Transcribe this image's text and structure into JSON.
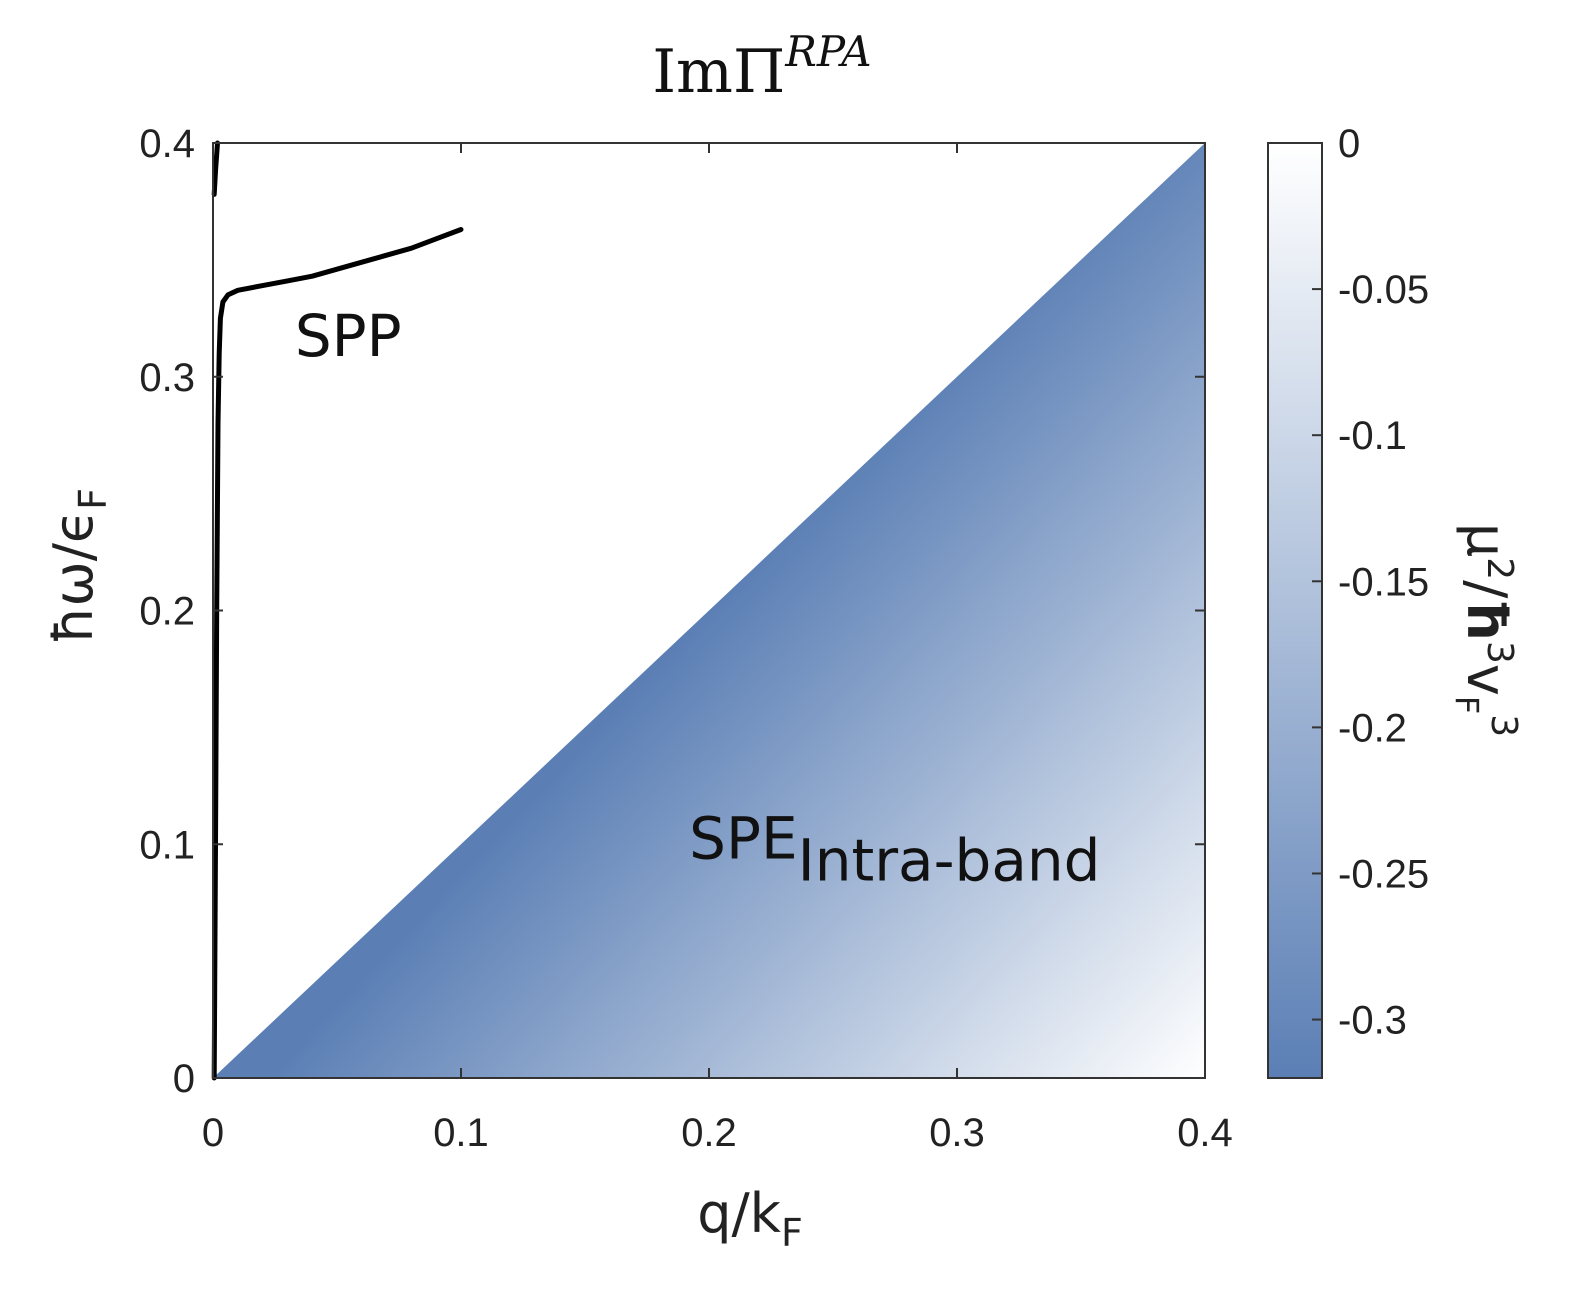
{
  "chart_data": {
    "type": "heatmap",
    "title": {
      "main": "ImΠ",
      "sup": "RPA"
    },
    "xlabel": {
      "main": "q/k",
      "sub": "F"
    },
    "ylabel": {
      "main": "ħω/ϵ",
      "sub": "F"
    },
    "colorbar_label": {
      "mu": "μ",
      "mu_sup": "2",
      "slash": "/",
      "hbar": "ħ",
      "hbar_sup": "3",
      "v": "v",
      "v_sub": "F",
      "v_sup": "3"
    },
    "xlim": [
      0,
      0.4
    ],
    "ylim": [
      0,
      0.4
    ],
    "xticks": [
      0,
      0.1,
      0.2,
      0.3,
      0.4
    ],
    "xtick_labels": [
      "0",
      "0.1",
      "0.2",
      "0.3",
      "0.4"
    ],
    "yticks": [
      0,
      0.1,
      0.2,
      0.3,
      0.4
    ],
    "ytick_labels": [
      "0",
      "0.1",
      "0.2",
      "0.3",
      "0.4"
    ],
    "colorbar": {
      "range": [
        -0.32,
        0
      ],
      "ticks": [
        0,
        -0.05,
        -0.1,
        -0.15,
        -0.2,
        -0.25,
        -0.3
      ],
      "tick_labels": [
        "0",
        "-0.05",
        "-0.1",
        "-0.15",
        "-0.2",
        "-0.25",
        "-0.3"
      ],
      "color_min": "#5b7fb5",
      "color_max": "#ffffff"
    },
    "spe_region": {
      "boundary_line": {
        "x": [
          0,
          0.4
        ],
        "y": [
          0,
          0.4
        ]
      },
      "description_rule": "filled where y < x"
    },
    "series": [
      {
        "type": "line",
        "color": "#000000",
        "x": [
          0.0005,
          0.001,
          0.0015,
          0.002,
          0.0025,
          0.003,
          0.004,
          0.006,
          0.01,
          0.02,
          0.03,
          0.04,
          0.05,
          0.06,
          0.07,
          0.08,
          0.09,
          0.1
        ],
        "y": [
          0.0,
          0.1,
          0.2,
          0.28,
          0.31,
          0.325,
          0.332,
          0.335,
          0.337,
          0.339,
          0.341,
          0.343,
          0.346,
          0.349,
          0.352,
          0.355,
          0.359,
          0.363
        ]
      },
      {
        "type": "line",
        "color": "#000000",
        "x": [
          0.0005,
          0.001,
          0.0018
        ],
        "y": [
          0.378,
          0.388,
          0.4
        ]
      }
    ],
    "annotations": [
      {
        "text": "SPP",
        "x": 0.033,
        "y": 0.32
      },
      {
        "text": "SPE",
        "sub": "Intra-band",
        "x": 0.192,
        "y": 0.105
      }
    ],
    "grid": false
  }
}
